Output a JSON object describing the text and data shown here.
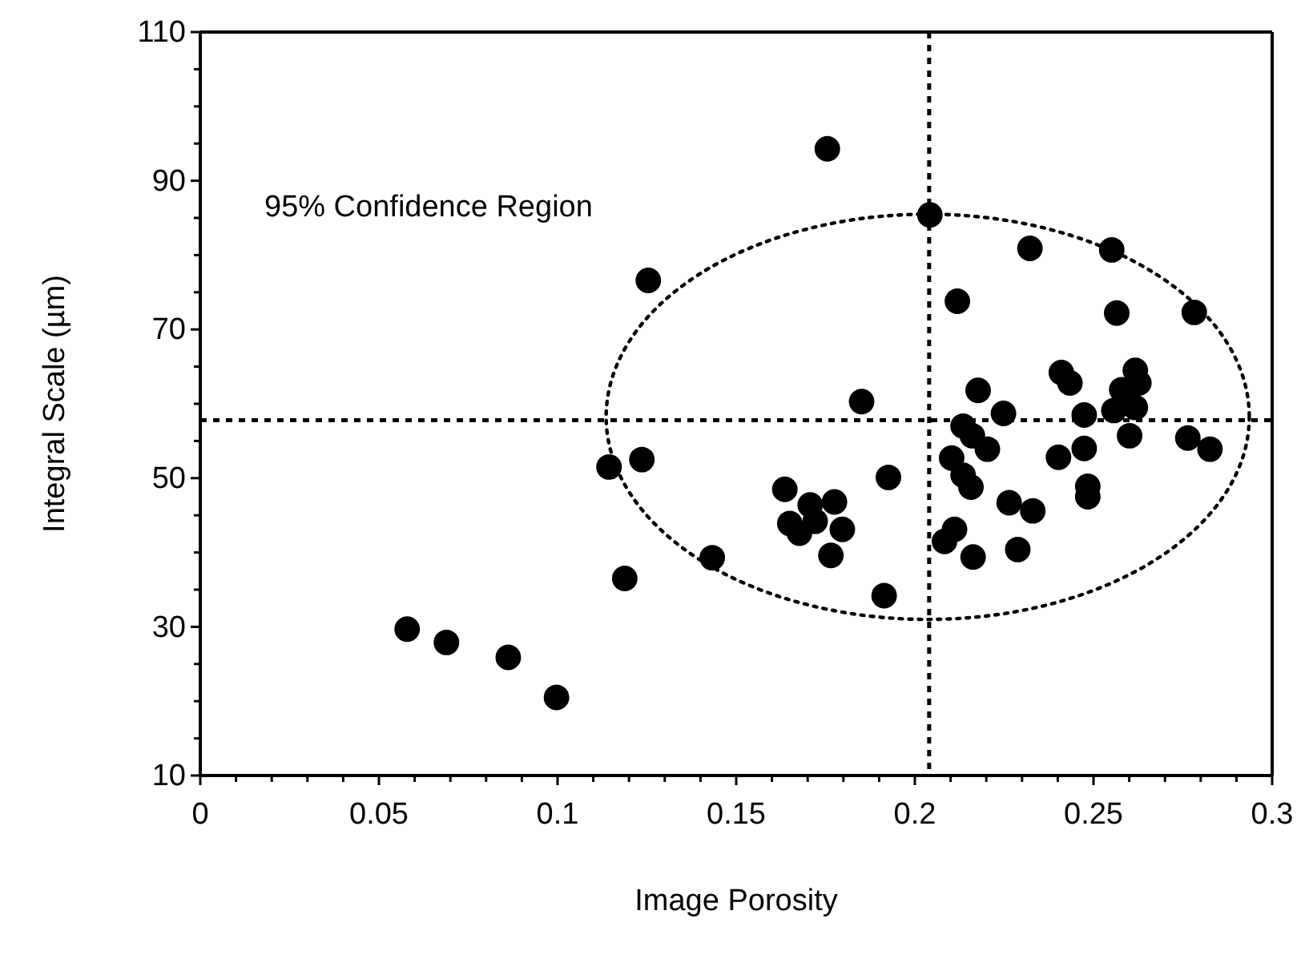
{
  "chart_data": {
    "type": "scatter",
    "xlabel": "Image Porosity",
    "ylabel": "Integral Scale (µm)",
    "xlim": [
      0,
      0.3
    ],
    "ylim": [
      10,
      110
    ],
    "xticks": [
      0,
      {
        "value": 0.01,
        "label": null
      },
      {
        "value": 0.02,
        "label": null
      },
      {
        "value": 0.03,
        "label": null
      },
      {
        "value": 0.04,
        "label": null
      },
      0.05,
      {
        "value": 0.06,
        "label": null
      },
      {
        "value": 0.07,
        "label": null
      },
      {
        "value": 0.08,
        "label": null
      },
      {
        "value": 0.09,
        "label": null
      },
      0.1,
      {
        "value": 0.11,
        "label": null
      },
      {
        "value": 0.12,
        "label": null
      },
      {
        "value": 0.13,
        "label": null
      },
      {
        "value": 0.14,
        "label": null
      },
      0.15,
      {
        "value": 0.16,
        "label": null
      },
      {
        "value": 0.17,
        "label": null
      },
      {
        "value": 0.18,
        "label": null
      },
      {
        "value": 0.19,
        "label": null
      },
      0.2,
      {
        "value": 0.21,
        "label": null
      },
      {
        "value": 0.22,
        "label": null
      },
      {
        "value": 0.23,
        "label": null
      },
      {
        "value": 0.24,
        "label": null
      },
      0.25,
      {
        "value": 0.26,
        "label": null
      },
      {
        "value": 0.27,
        "label": null
      },
      {
        "value": 0.28,
        "label": null
      },
      {
        "value": 0.29,
        "label": null
      },
      0.3
    ],
    "yticks": [
      10,
      {
        "value": 15,
        "label": null
      },
      {
        "value": 20,
        "label": null
      },
      {
        "value": 25,
        "label": null
      },
      30,
      {
        "value": 35,
        "label": null
      },
      {
        "value": 40,
        "label": null
      },
      {
        "value": 45,
        "label": null
      },
      50,
      {
        "value": 55,
        "label": null
      },
      {
        "value": 60,
        "label": null
      },
      {
        "value": 65,
        "label": null
      },
      70,
      {
        "value": 75,
        "label": null
      },
      {
        "value": 80,
        "label": null
      },
      {
        "value": 85,
        "label": null
      },
      90,
      {
        "value": 95,
        "label": null
      },
      {
        "value": 100,
        "label": null
      },
      {
        "value": 105,
        "label": null
      },
      110
    ],
    "grid": false,
    "marker": "circle",
    "annotations": [
      "95% Confidence Region"
    ],
    "ref_lines": [
      {
        "axis": "x",
        "value": 0.204,
        "line_style": "dashed",
        "color": "#000000"
      },
      {
        "axis": "y",
        "value": 57.8,
        "line_style": "dashed",
        "color": "#000000"
      }
    ],
    "series": [
      {
        "color": "#000000",
        "x": [
          0.1755,
          0.2042,
          0.1254,
          0.2322,
          0.2551,
          0.2119,
          0.2565,
          0.2782,
          0.241,
          0.2434,
          0.2617,
          0.2627,
          0.2579,
          0.2177,
          0.1851,
          0.2248,
          0.2474,
          0.2557,
          0.2617,
          0.2135,
          0.2161,
          0.2203,
          0.2601,
          0.2764,
          0.2826,
          0.2474,
          0.2402,
          0.2103,
          0.1144,
          0.1236,
          0.1926,
          0.2135,
          0.2157,
          0.2484,
          0.2484,
          0.1636,
          0.1707,
          0.1775,
          0.165,
          0.1677,
          0.1721,
          0.1797,
          0.1765,
          0.2264,
          0.233,
          0.2111,
          0.2083,
          0.2163,
          0.2288,
          0.1433,
          0.1188,
          0.1914,
          0.0579,
          0.0689,
          0.0862,
          0.0997
        ],
        "values": [
          94.3,
          85.4,
          76.6,
          80.9,
          80.7,
          73.8,
          72.2,
          72.3,
          64.2,
          62.8,
          64.5,
          62.8,
          61.9,
          61.8,
          60.3,
          58.7,
          58.5,
          59.1,
          59.5,
          57.0,
          55.7,
          53.9,
          55.7,
          55.4,
          53.9,
          54.0,
          52.8,
          52.7,
          51.5,
          52.5,
          50.1,
          50.4,
          48.8,
          48.9,
          47.5,
          48.5,
          46.4,
          46.8,
          43.9,
          42.6,
          44.2,
          43.1,
          39.6,
          46.7,
          45.6,
          43.1,
          41.5,
          39.4,
          40.4,
          39.3,
          36.5,
          34.2,
          29.7,
          27.9,
          25.9,
          20.5
        ]
      }
    ]
  }
}
